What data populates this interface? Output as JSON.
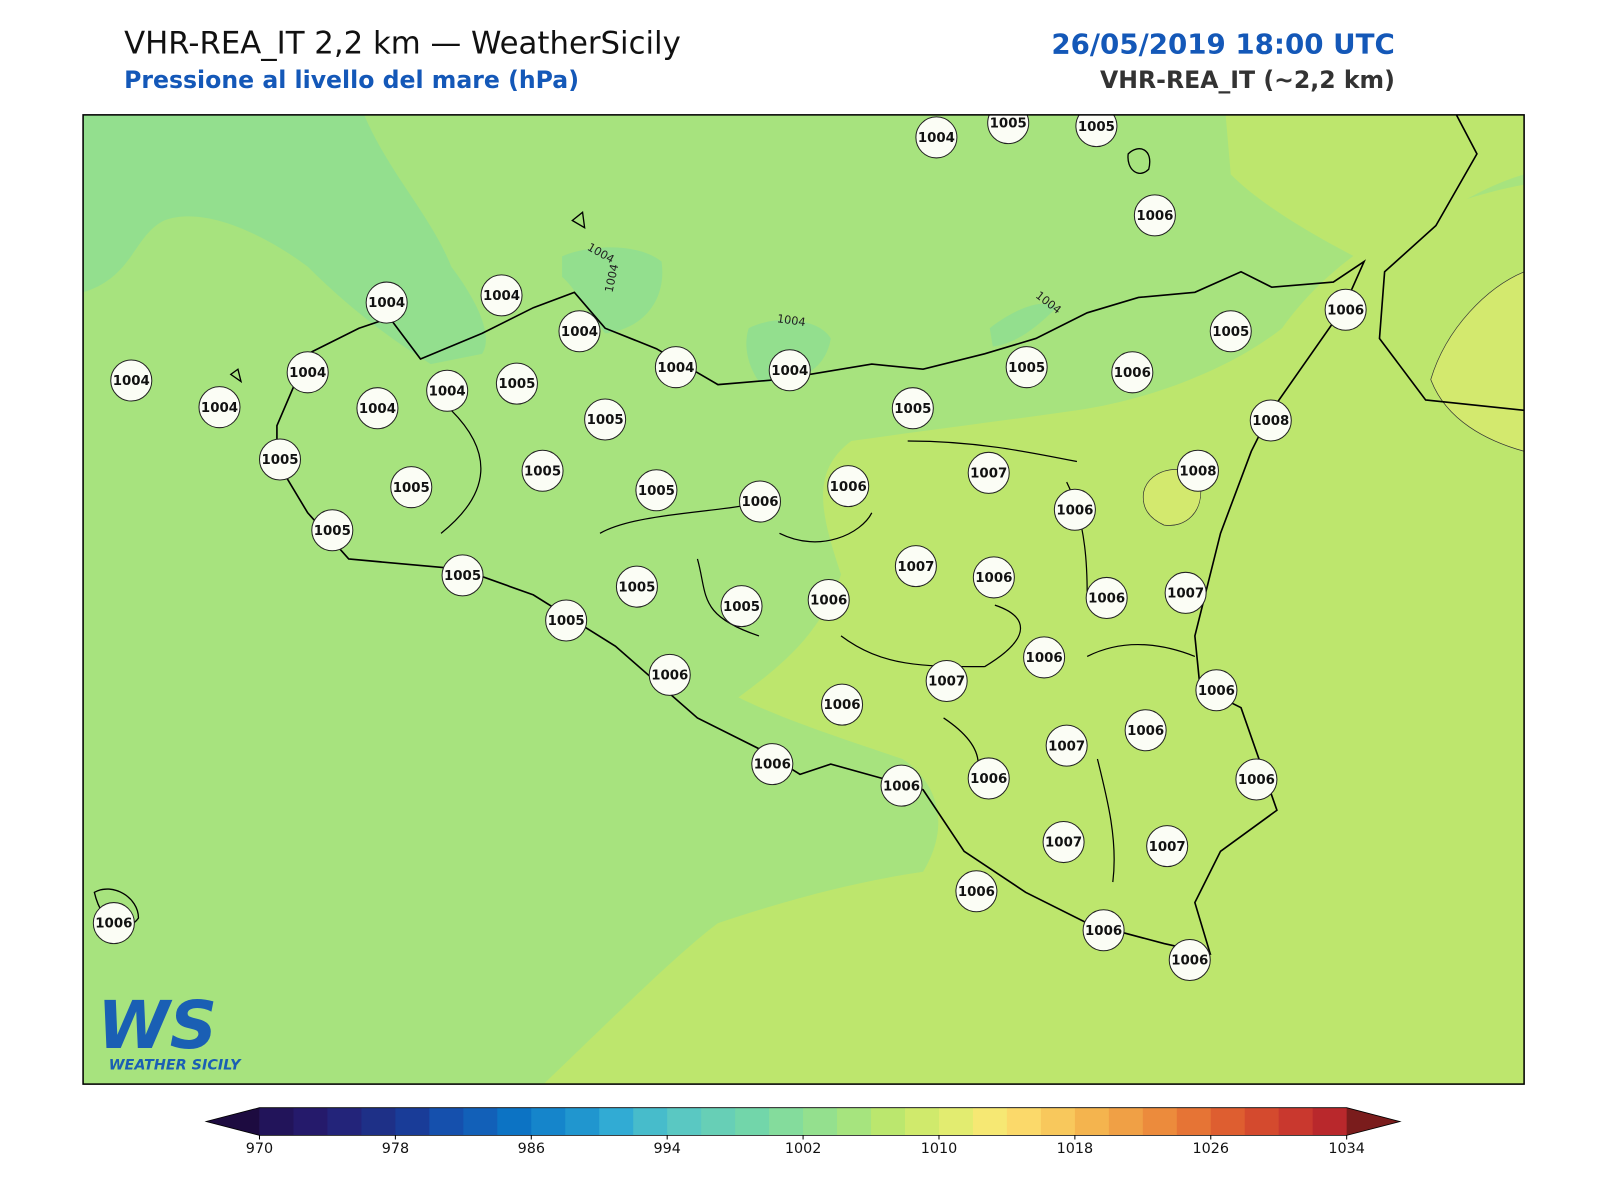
{
  "header": {
    "title": "VHR-REA_IT 2,2 km — WeatherSicily",
    "subtitle": "Pressione al livello del mare (hPa)",
    "datetime": "26/05/2019 18:00 UTC",
    "model": "VHR-REA_IT (~2,2 km)"
  },
  "stations": [
    1004,
    1005,
    1005,
    1006,
    1004,
    1004,
    1004,
    1004,
    1004,
    1006,
    1005,
    1005,
    1006,
    1004,
    1004,
    1004,
    1004,
    1004,
    1005,
    1005,
    1005,
    1008,
    1005,
    1005,
    1005,
    1005,
    1006,
    1006,
    1007,
    1008,
    1006,
    1005,
    1005,
    1005,
    1005,
    1005,
    1006,
    1007,
    1006,
    1006,
    1007,
    1006,
    1006,
    1006,
    1007,
    1006,
    1007,
    1006,
    1006,
    1006,
    1006,
    1006,
    1007,
    1007,
    1006,
    1006,
    1006,
    1006
  ],
  "contour_labels": [
    1004,
    1004,
    1004,
    1004
  ],
  "logo": {
    "mark": "WS",
    "text": "WEATHER SICILY"
  },
  "colorbar": {
    "lim": [
      970,
      1034
    ],
    "ticks": [
      970,
      978,
      986,
      994,
      1002,
      1010,
      1018,
      1026,
      1034
    ],
    "colors": [
      "#22145a",
      "#251a6b",
      "#23247a",
      "#1e3087",
      "#193c98",
      "#1550ad",
      "#1260b8",
      "#0c73c4",
      "#1585cb",
      "#2096cf",
      "#31abd4",
      "#47bccb",
      "#5ac8c2",
      "#67cfb6",
      "#72d6aa",
      "#84dc9c",
      "#94e08e",
      "#a6e47e",
      "#bbe76e",
      "#d0ea6c",
      "#e2ec70",
      "#f6e873",
      "#fbd96a",
      "#f8c85c",
      "#f4b44e",
      "#f0a045",
      "#ec8b3c",
      "#e67435",
      "#de5e30",
      "#d44a2e",
      "#c9382e",
      "#b9282c"
    ],
    "under": "#1d0b40",
    "over": "#7a1c1c"
  }
}
